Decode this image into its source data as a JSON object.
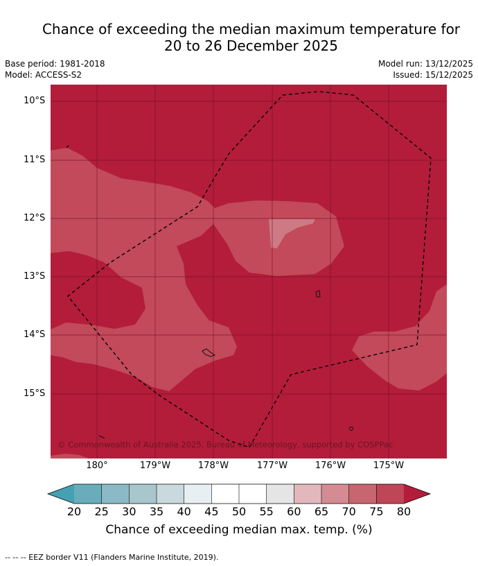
{
  "title_line1": "Chance of exceeding the median maximum temperature for",
  "title_line2": "20 to 26 December 2025",
  "base_period": "Base period: 1981-2018",
  "model": "Model: ACCESS-S2",
  "model_run": "Model run: 13/12/2025",
  "issued": "Issued: 15/12/2025",
  "lat_labels": [
    "10°S",
    "11°S",
    "12°S",
    "13°S",
    "14°S",
    "15°S"
  ],
  "lon_labels": [
    "180°",
    "179°W",
    "178°W",
    "177°W",
    "176°W",
    "175°W"
  ],
  "copyright": "© Commonwealth of Australia 2025, Bureau of Meteorology, supported by COSPPac",
  "colorbar": {
    "ticks": [
      "20",
      "25",
      "30",
      "35",
      "40",
      "45",
      "50",
      "55",
      "60",
      "65",
      "70",
      "75",
      "80"
    ],
    "colors": [
      "#69adba",
      "#8bb9c6",
      "#a9c6cc",
      "#c9d9de",
      "#e8eff2",
      "#ffffff",
      "#ffffff",
      "#e5e5e5",
      "#e2b8bd",
      "#d48b94",
      "#c76570",
      "#bf4656"
    ],
    "under_color": "#45a0b3",
    "over_color": "#b31d3a",
    "label": "Chance of exceeding median max. temp. (%)"
  },
  "legend_footer": "-- -- -- EEZ border V11 (Flanders Marine Institute, 2019)."
}
